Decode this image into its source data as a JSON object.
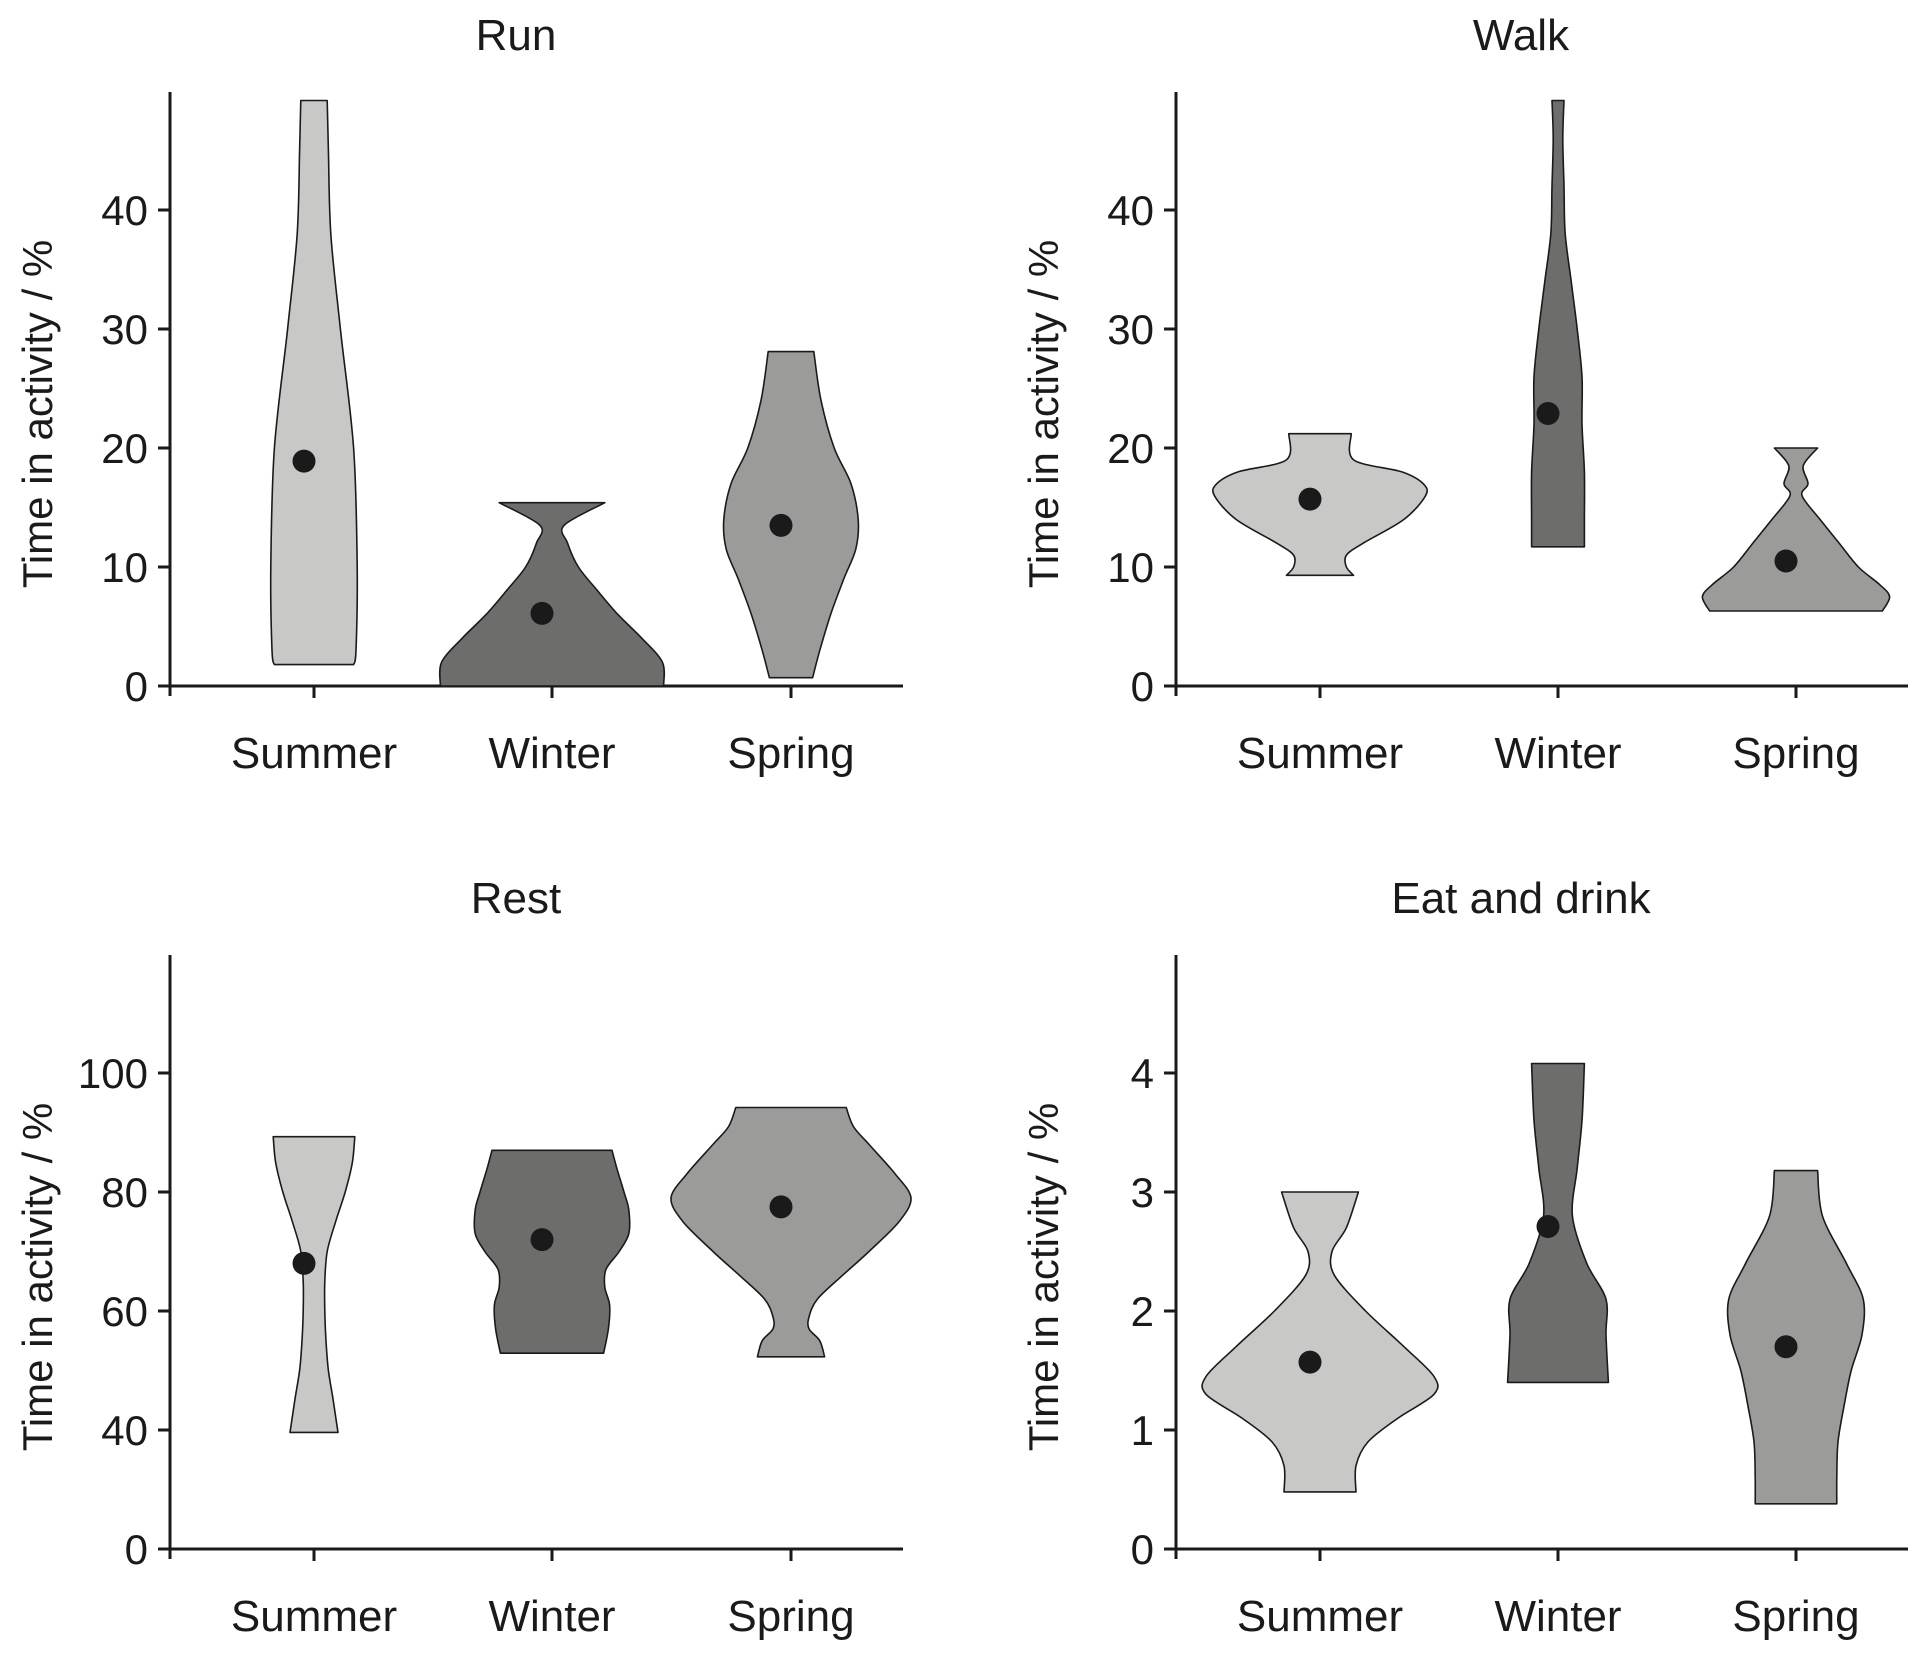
{
  "chart_data": [
    {
      "type": "violin",
      "title": "Run",
      "ylabel": "Time in activity / %",
      "categories": [
        "Summer",
        "Winter",
        "Spring"
      ],
      "yticks": [
        0,
        10,
        20,
        30,
        40
      ],
      "ylim": [
        0,
        50
      ],
      "colors": [
        "#c8c8c7",
        "#6d6d6c",
        "#9b9b9a"
      ],
      "means": [
        18.9,
        6.1,
        13.5
      ],
      "violins": [
        {
          "profile": [
            [
              1.8,
              0.33
            ],
            [
              3,
              0.35
            ],
            [
              10,
              0.36
            ],
            [
              20,
              0.33
            ],
            [
              30,
              0.22
            ],
            [
              38,
              0.14
            ],
            [
              45,
              0.12
            ],
            [
              49.2,
              0.11
            ]
          ]
        },
        {
          "profile": [
            [
              0,
              0.93
            ],
            [
              2,
              0.92
            ],
            [
              4,
              0.75
            ],
            [
              6,
              0.55
            ],
            [
              8,
              0.38
            ],
            [
              10,
              0.22
            ],
            [
              12,
              0.13
            ],
            [
              13.5,
              0.1
            ],
            [
              15.4,
              0.44
            ]
          ]
        },
        {
          "profile": [
            [
              0.7,
              0.18
            ],
            [
              3,
              0.24
            ],
            [
              6,
              0.33
            ],
            [
              9,
              0.44
            ],
            [
              11.5,
              0.54
            ],
            [
              14,
              0.56
            ],
            [
              17,
              0.5
            ],
            [
              20,
              0.36
            ],
            [
              24,
              0.25
            ],
            [
              28.1,
              0.19
            ]
          ]
        }
      ]
    },
    {
      "type": "violin",
      "title": "Walk",
      "ylabel": "Time in activity / %",
      "categories": [
        "Summer",
        "Winter",
        "Spring"
      ],
      "yticks": [
        0,
        10,
        20,
        30,
        40
      ],
      "ylim": [
        0,
        50
      ],
      "colors": [
        "#c8c8c7",
        "#6d6d6c",
        "#9b9b9a"
      ],
      "means": [
        15.7,
        22.9,
        10.5
      ],
      "violins": [
        {
          "profile": [
            [
              9.3,
              0.28
            ],
            [
              10,
              0.22
            ],
            [
              11,
              0.22
            ],
            [
              12,
              0.36
            ],
            [
              14,
              0.7
            ],
            [
              16,
              0.88
            ],
            [
              17,
              0.86
            ],
            [
              18,
              0.68
            ],
            [
              19,
              0.28
            ],
            [
              21.2,
              0.26
            ]
          ]
        },
        {
          "profile": [
            [
              11.7,
              0.22
            ],
            [
              14,
              0.22
            ],
            [
              18,
              0.22
            ],
            [
              22,
              0.2
            ],
            [
              26,
              0.2
            ],
            [
              30,
              0.16
            ],
            [
              34,
              0.11
            ],
            [
              38,
              0.06
            ],
            [
              42,
              0.05
            ],
            [
              46,
              0.04
            ],
            [
              49.2,
              0.05
            ]
          ]
        },
        {
          "profile": [
            [
              6.3,
              0.72
            ],
            [
              7.5,
              0.78
            ],
            [
              8.5,
              0.7
            ],
            [
              10,
              0.52
            ],
            [
              12,
              0.36
            ],
            [
              14,
              0.2
            ],
            [
              16,
              0.05
            ],
            [
              17,
              0.1
            ],
            [
              18.5,
              0.06
            ],
            [
              20,
              0.18
            ]
          ]
        }
      ]
    },
    {
      "type": "violin",
      "title": "Rest",
      "ylabel": "Time in activity / %",
      "categories": [
        "Summer",
        "Winter",
        "Spring"
      ],
      "yticks": [
        0,
        40,
        60,
        80,
        100
      ],
      "ylim": [
        0,
        120
      ],
      "colors": [
        "#c8c8c7",
        "#6d6d6c",
        "#9b9b9a"
      ],
      "means": [
        68,
        72,
        77.5
      ],
      "violins": [
        {
          "profile": [
            [
              39.2,
              0.2
            ],
            [
              45,
              0.16
            ],
            [
              50,
              0.12
            ],
            [
              55,
              0.1
            ],
            [
              60,
              0.09
            ],
            [
              65,
              0.09
            ],
            [
              70,
              0.11
            ],
            [
              75,
              0.18
            ],
            [
              80,
              0.26
            ],
            [
              85,
              0.32
            ],
            [
              89.3,
              0.34
            ]
          ]
        },
        {
          "profile": [
            [
              52.9,
              0.43
            ],
            [
              57,
              0.47
            ],
            [
              61,
              0.48
            ],
            [
              64,
              0.44
            ],
            [
              67,
              0.45
            ],
            [
              70,
              0.56
            ],
            [
              73,
              0.64
            ],
            [
              77,
              0.64
            ],
            [
              80,
              0.6
            ],
            [
              84,
              0.54
            ],
            [
              87,
              0.5
            ]
          ]
        },
        {
          "profile": [
            [
              52.3,
              0.28
            ],
            [
              55,
              0.24
            ],
            [
              57,
              0.15
            ],
            [
              59,
              0.15
            ],
            [
              62,
              0.22
            ],
            [
              66,
              0.43
            ],
            [
              70,
              0.65
            ],
            [
              75,
              0.9
            ],
            [
              79,
              1.0
            ],
            [
              83,
              0.87
            ],
            [
              88,
              0.65
            ],
            [
              91,
              0.52
            ],
            [
              94.2,
              0.46
            ]
          ]
        }
      ]
    },
    {
      "type": "violin",
      "title": "Eat and drink",
      "ylabel": "Time in activity / %",
      "categories": [
        "Summer",
        "Winter",
        "Spring"
      ],
      "yticks": [
        0,
        1,
        2,
        3,
        4
      ],
      "ylim": [
        0,
        5
      ],
      "colors": [
        "#c8c8c7",
        "#6d6d6c",
        "#9b9b9a"
      ],
      "means": [
        1.57,
        2.71,
        1.7
      ],
      "violins": [
        {
          "profile": [
            [
              0.48,
              0.3
            ],
            [
              0.7,
              0.3
            ],
            [
              0.9,
              0.4
            ],
            [
              1.1,
              0.65
            ],
            [
              1.3,
              0.95
            ],
            [
              1.45,
              0.95
            ],
            [
              1.7,
              0.7
            ],
            [
              2.0,
              0.38
            ],
            [
              2.3,
              0.12
            ],
            [
              2.5,
              0.1
            ],
            [
              2.7,
              0.22
            ],
            [
              3.0,
              0.32
            ]
          ]
        },
        {
          "profile": [
            [
              1.4,
              0.42
            ],
            [
              1.8,
              0.4
            ],
            [
              2.1,
              0.4
            ],
            [
              2.4,
              0.24
            ],
            [
              2.8,
              0.12
            ],
            [
              3.2,
              0.16
            ],
            [
              3.6,
              0.2
            ],
            [
              4.08,
              0.22
            ]
          ]
        },
        {
          "profile": [
            [
              0.38,
              0.34
            ],
            [
              0.6,
              0.34
            ],
            [
              0.9,
              0.35
            ],
            [
              1.2,
              0.4
            ],
            [
              1.5,
              0.46
            ],
            [
              1.8,
              0.55
            ],
            [
              2.1,
              0.56
            ],
            [
              2.4,
              0.42
            ],
            [
              2.8,
              0.22
            ],
            [
              3.18,
              0.18
            ]
          ]
        }
      ]
    }
  ]
}
